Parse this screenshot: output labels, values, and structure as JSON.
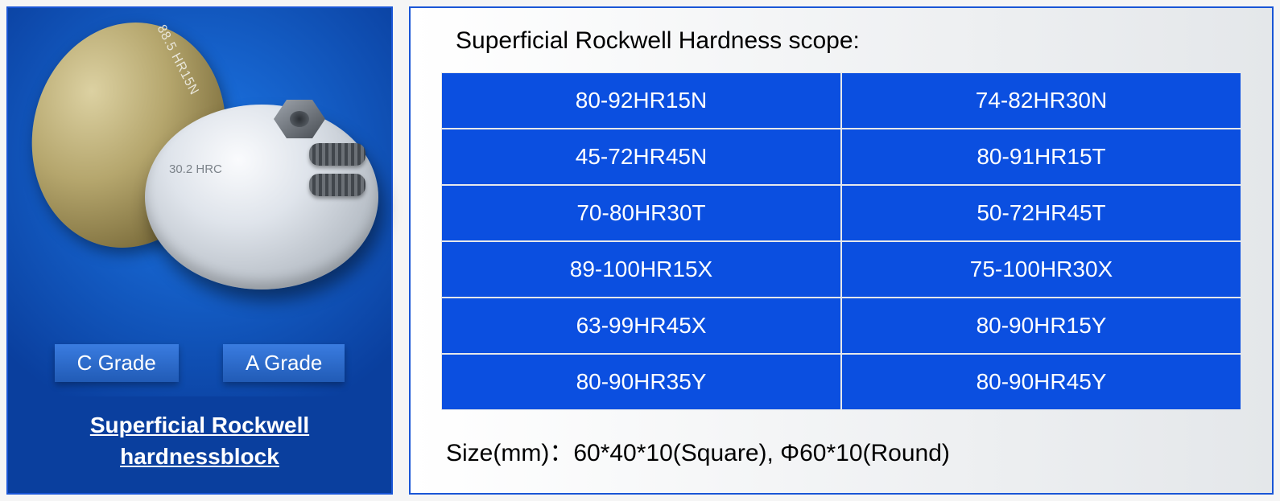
{
  "left": {
    "disc_back_label": "88.5 HR15N",
    "disc_front_label": "30.2 HRC",
    "grade_c": "C Grade",
    "grade_a": "A Grade",
    "caption_line1": "Superficial Rockwell",
    "caption_line2": "hardnessblock"
  },
  "right": {
    "title": "Superficial Rockwell Hardness scope:",
    "cells": [
      "80-92HR15N",
      "74-82HR30N",
      "45-72HR45N",
      "80-91HR15T",
      "70-80HR30T",
      "50-72HR45T",
      "89-100HR15X",
      "75-100HR30X",
      "63-99HR45X",
      "80-90HR15Y",
      "80-90HR35Y",
      "80-90HR45Y"
    ],
    "size_line": "Size(mm)：60*40*10(Square), Φ60*10(Round)"
  },
  "colors": {
    "panel_border": "#1a56d6",
    "cell_bg": "#0b4fe0",
    "left_bg_top": "#0b5ed7",
    "left_bg_bottom": "#0a3f9e"
  }
}
